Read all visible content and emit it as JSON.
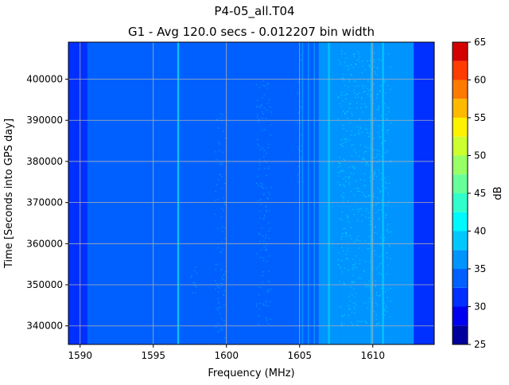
{
  "chart_data": {
    "type": "heatmap",
    "title": "P4-05_all.T04",
    "subtitle": "G1 - Avg 120.0 secs - 0.012207 bin width",
    "xlabel": "Frequency (MHz)",
    "ylabel": "Time [Seconds into GPS day]",
    "xlim": [
      1589.2,
      1614.2
    ],
    "ylim": [
      335500,
      409000
    ],
    "x_ticks": [
      1590,
      1595,
      1600,
      1605,
      1610
    ],
    "y_ticks": [
      340000,
      350000,
      360000,
      370000,
      380000,
      390000,
      400000
    ],
    "grid": true,
    "colorbar": {
      "label": "dB",
      "min": 25,
      "max": 65,
      "ticks": [
        25,
        30,
        35,
        40,
        45,
        50,
        55,
        60,
        65
      ],
      "levels": [
        25,
        27.5,
        30,
        32.5,
        35,
        37.5,
        40,
        42.5,
        45,
        47.5,
        50,
        52.5,
        55,
        57.5,
        60,
        62.5,
        65
      ],
      "colors": [
        "#00009c",
        "#0000f0",
        "#0030ff",
        "#0060ff",
        "#0094ff",
        "#00c8ff",
        "#00f8ff",
        "#30ffcc",
        "#66ff99",
        "#99ff66",
        "#ccff30",
        "#fff200",
        "#ffba00",
        "#ff7a00",
        "#ff3c00",
        "#d40000"
      ]
    },
    "background_level_db": 33,
    "bands": [
      {
        "x_start": 1589.2,
        "x_end": 1590.5,
        "level_db": 31
      },
      {
        "x_start": 1590.5,
        "x_end": 1595.6,
        "level_db": 33
      },
      {
        "x_start": 1595.6,
        "x_end": 1596.6,
        "level_db": 34
      },
      {
        "x_start": 1596.6,
        "x_end": 1604.8,
        "level_db": 33
      },
      {
        "x_start": 1604.8,
        "x_end": 1606.3,
        "level_db": 34
      },
      {
        "x_start": 1606.3,
        "x_end": 1607.7,
        "level_db": 36
      },
      {
        "x_start": 1607.7,
        "x_end": 1612.8,
        "level_db": 36
      },
      {
        "x_start": 1612.8,
        "x_end": 1614.2,
        "level_db": 31
      }
    ],
    "lines": [
      {
        "x": 1596.7,
        "level_db": 39,
        "width_mhz": 0.12
      },
      {
        "x": 1605.2,
        "level_db": 36,
        "width_mhz": 0.08
      },
      {
        "x": 1605.6,
        "level_db": 36,
        "width_mhz": 0.08
      },
      {
        "x": 1606.0,
        "level_db": 36,
        "width_mhz": 0.08
      },
      {
        "x": 1606.6,
        "level_db": 37,
        "width_mhz": 0.1
      },
      {
        "x": 1607.0,
        "level_db": 39,
        "width_mhz": 0.12
      },
      {
        "x": 1609.9,
        "level_db": 38,
        "width_mhz": 0.1
      },
      {
        "x": 1610.7,
        "level_db": 38,
        "width_mhz": 0.12
      }
    ],
    "speckle_regions": [
      {
        "x": [
          1607.6,
          1611.2
        ],
        "y": [
          340000,
          407000
        ],
        "level_db": 38
      },
      {
        "x": [
          1604.8,
          1605.2
        ],
        "y": [
          375000,
          407000
        ],
        "level_db": 35
      },
      {
        "x": [
          1599.2,
          1599.9
        ],
        "y": [
          337000,
          392000
        ],
        "level_db": 35
      },
      {
        "x": [
          1597.5,
          1598.2
        ],
        "y": [
          348000,
          355000
        ],
        "level_db": 35
      },
      {
        "x": [
          1602.0,
          1603.0
        ],
        "y": [
          340000,
          400000
        ],
        "level_db": 35
      }
    ]
  }
}
